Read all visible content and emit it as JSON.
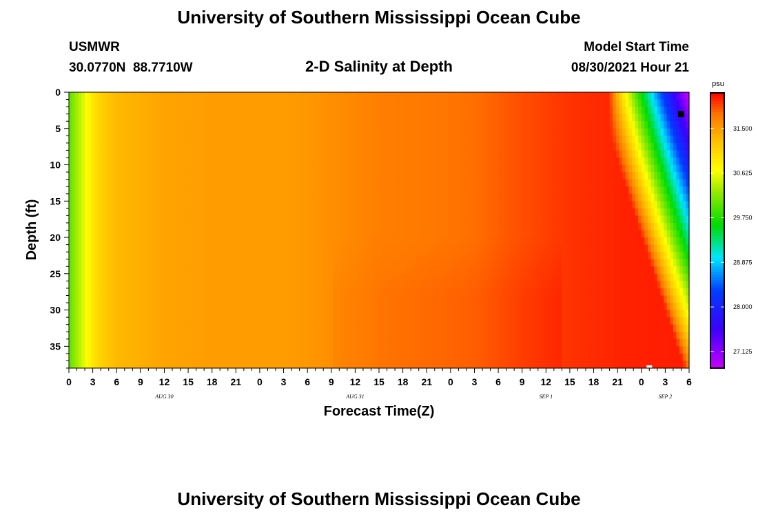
{
  "header": {
    "title": "University of Southern Mississippi Ocean Cube",
    "station": "USMWR",
    "coords": "30.0770N  88.7710W",
    "subtitle": "2-D Salinity at Depth",
    "model_label": "Model Start Time",
    "model_time": "08/30/2021 Hour 21"
  },
  "footer": {
    "title": "University of Southern Mississippi Ocean Cube"
  },
  "chart_data": {
    "type": "heatmap",
    "title": "2-D Salinity at Depth",
    "xlabel": "Forecast Time(Z)",
    "ylabel": "Depth (ft)",
    "x_hours_since_start": [
      0,
      78
    ],
    "xlim_hours": [
      0,
      78
    ],
    "x_tick_labels": [
      "0",
      "3",
      "6",
      "9",
      "12",
      "15",
      "18",
      "21",
      "0",
      "3",
      "6",
      "9",
      "12",
      "15",
      "18",
      "21",
      "0",
      "3",
      "6",
      "9",
      "12",
      "15",
      "18",
      "21",
      "0",
      "3",
      "6"
    ],
    "x_tick_step_hours": 3,
    "date_labels": [
      {
        "label": "AUG 30",
        "hour": 12
      },
      {
        "label": "AUG 31",
        "hour": 36
      },
      {
        "label": "SEP 1",
        "hour": 60
      },
      {
        "label": "SEP 2",
        "hour": 75
      }
    ],
    "ylim": [
      0,
      38
    ],
    "y_ticks": [
      0,
      5,
      10,
      15,
      20,
      25,
      30,
      35
    ],
    "y_reversed": true,
    "colorbar": {
      "unit": "psu",
      "range": [
        26.8,
        32.2
      ],
      "ticks": [
        "31.500",
        "30.625",
        "29.750",
        "28.875",
        "28.000",
        "27.125"
      ],
      "tick_values": [
        31.5,
        30.625,
        29.75,
        28.875,
        28.0,
        27.125
      ]
    },
    "salinity_profile_by_hour": [
      {
        "hour": 0,
        "psu": 30.0
      },
      {
        "hour": 3,
        "psu": 30.9
      },
      {
        "hour": 4,
        "psu": 31.1
      },
      {
        "hour": 6,
        "psu": 31.3
      },
      {
        "hour": 12,
        "psu": 31.45
      },
      {
        "hour": 18,
        "psu": 31.5
      },
      {
        "hour": 27,
        "psu": 31.5
      },
      {
        "hour": 33,
        "psu": 31.6
      },
      {
        "hour": 39,
        "psu": 31.72
      },
      {
        "hour": 51,
        "psu": 31.8
      },
      {
        "hour": 57,
        "psu": 31.92
      },
      {
        "hour": 63,
        "psu": 32.02
      },
      {
        "hour": 70,
        "psu": 32.08
      },
      {
        "hour": 78,
        "psu": 32.1
      }
    ],
    "freshwater_intrusion": {
      "start_hour": 68,
      "surface_min_psu": 26.9,
      "description_depths_ft": [
        0,
        38
      ]
    },
    "markers": [
      {
        "hour": 77,
        "depth_ft": 3,
        "color": "#000000"
      },
      {
        "hour": 73,
        "depth_ft": 37.8,
        "color": "#ffffff"
      }
    ]
  }
}
